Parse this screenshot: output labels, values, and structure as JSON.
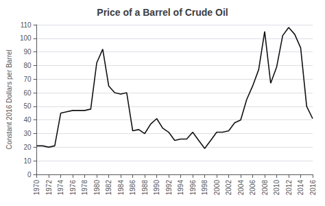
{
  "chart_data": {
    "type": "line",
    "title": "Price of a Barrel of Crude Oil",
    "ylabel": "Constant 2016 Dollars per Barrel",
    "x": [
      1970,
      1971,
      1972,
      1973,
      1974,
      1975,
      1976,
      1977,
      1978,
      1979,
      1980,
      1981,
      1982,
      1983,
      1984,
      1985,
      1986,
      1987,
      1988,
      1989,
      1990,
      1991,
      1992,
      1993,
      1994,
      1995,
      1996,
      1997,
      1998,
      1999,
      2000,
      2001,
      2002,
      2003,
      2004,
      2005,
      2006,
      2007,
      2008,
      2009,
      2010,
      2011,
      2012,
      2013,
      2014,
      2015,
      2016
    ],
    "values": [
      21,
      21,
      20,
      21,
      45,
      46,
      47,
      47,
      47,
      48,
      82,
      92,
      65,
      60,
      59,
      60,
      32,
      33,
      30,
      37,
      41,
      34,
      31,
      25,
      26,
      26,
      31,
      25,
      19,
      25,
      31,
      31,
      32,
      38,
      40,
      55,
      65,
      77,
      105,
      67,
      79,
      102,
      108,
      103,
      93,
      50,
      41
    ],
    "color": "#111111",
    "xlim": [
      1970,
      2016
    ],
    "xticks": [
      1970,
      1972,
      1974,
      1976,
      1978,
      1980,
      1982,
      1984,
      1986,
      1988,
      1990,
      1992,
      1994,
      1996,
      1998,
      2000,
      2002,
      2004,
      2006,
      2008,
      2010,
      2012,
      2014,
      2016
    ],
    "ylim": [
      0,
      110
    ],
    "yticks": [
      0,
      10,
      20,
      30,
      40,
      50,
      60,
      70,
      80,
      90,
      100,
      110
    ],
    "grid": true
  }
}
